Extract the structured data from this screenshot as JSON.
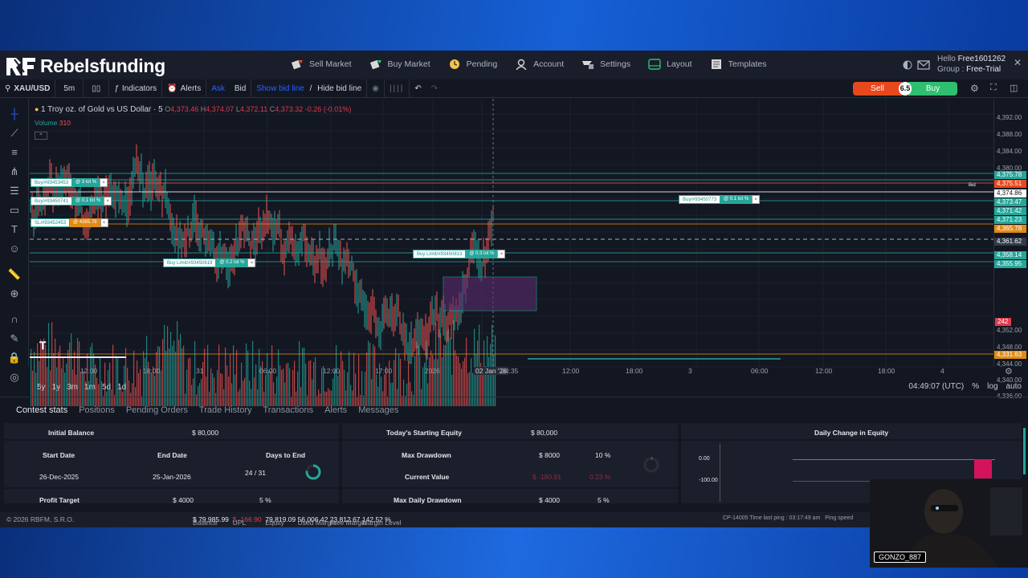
{
  "brand": {
    "name": "Rebelsfunding"
  },
  "nav": [
    {
      "label": "Sell Market",
      "icon": "sell-market-icon"
    },
    {
      "label": "Buy Market",
      "icon": "buy-market-icon"
    },
    {
      "label": "Pending",
      "icon": "pending-icon"
    },
    {
      "label": "Account",
      "icon": "account-icon"
    },
    {
      "label": "Settings",
      "icon": "settings-icon"
    },
    {
      "label": "Layout",
      "icon": "layout-icon"
    },
    {
      "label": "Templates",
      "icon": "templates-icon"
    }
  ],
  "user": {
    "hello_label": "Hello",
    "username": "Free1601262",
    "group_label": "Group",
    "group": "Free-Trial"
  },
  "toolbar": {
    "symbol": "XAU/USD",
    "interval": "5m",
    "indicators": "Indicators",
    "alerts": "Alerts",
    "ask": "Ask",
    "bid": "Bid",
    "show_bid_line": "Show bid line",
    "sep": " / ",
    "hide_bid_line": "Hide bid line"
  },
  "trade": {
    "sell": "Sell",
    "spread": "6.5",
    "buy": "Buy"
  },
  "legend": {
    "title": "1 Troy oz. of Gold vs US Dollar · 5",
    "o_label": "O",
    "o": "4,373.46",
    "h_label": "H",
    "h": "4,374.07",
    "l_label": "L",
    "l": "4,372.11",
    "c_label": "C",
    "c": "4,373.32",
    "change": "-0.26 (-0.01%)",
    "volume_label": "Volume",
    "volume": "310"
  },
  "price_axis": {
    "labels": [
      "4,392.00",
      "4,388.00",
      "4,384.00",
      "4,380.00",
      "4,352.00",
      "4,348.00",
      "4,344.00",
      "4,340.00",
      "4,336.00"
    ],
    "tags": [
      {
        "text": "4,375.78",
        "color": "#26a69a"
      },
      {
        "text": "4,375.51",
        "color": "#e8481e"
      },
      {
        "text": "4,374.86",
        "color": "#ffffff"
      },
      {
        "text": "4,373.47",
        "color": "#26a69a"
      },
      {
        "text": "4,371.42",
        "color": "#26a69a"
      },
      {
        "text": "4,371.23",
        "color": "#26a69a"
      },
      {
        "text": "4,365.78",
        "color": "#e08b16"
      },
      {
        "text": "4,361.62",
        "color": "#333a48"
      },
      {
        "text": "4,358.14",
        "color": "#26a69a"
      },
      {
        "text": "4,355.95",
        "color": "#26a69a"
      },
      {
        "text": "242",
        "color": "#e03a4e"
      },
      {
        "text": "4,331.63",
        "color": "#e08b16"
      }
    ],
    "bid_tag": "Bid"
  },
  "time_axis": [
    "12:00",
    "18:00",
    "31",
    "06:00",
    "12:00",
    "17:00",
    "2026",
    "02 Jan '26",
    "04:35",
    "12:00",
    "18:00",
    "3",
    "06:00",
    "12:00",
    "18:00",
    "4"
  ],
  "orders": [
    {
      "label": "Buy/#93453453",
      "lot": "@ 3 lot %",
      "kind": "buy"
    },
    {
      "label": "Buy/#93450741",
      "lot": "@ 0.1 lot %",
      "kind": "buy"
    },
    {
      "label": "SL/#93452453",
      "lot": "@ 4365.78",
      "kind": "sl"
    },
    {
      "label": "Buy Limit/#93450819",
      "lot": "@ 0.2 lot %",
      "kind": "buy"
    },
    {
      "label": "Buy Limit/#93450813",
      "lot": "@ 0.3 lot %",
      "kind": "buy"
    },
    {
      "label": "Buy/#93450773",
      "lot": "@ 0.1 lot %",
      "kind": "buy"
    }
  ],
  "ranges": [
    "5y",
    "1y",
    "3m",
    "1m",
    "5d",
    "1d"
  ],
  "clock": {
    "time": "04:49:07 (UTC)",
    "pct": "%",
    "log": "log",
    "auto": "auto"
  },
  "tabs": [
    "Contest stats",
    "Positions",
    "Pending Orders",
    "Trade History",
    "Transactions",
    "Alerts",
    "Messages"
  ],
  "stats": {
    "initial_balance_label": "Initial Balance",
    "initial_balance": "$ 80,000",
    "start_date_label": "Start Date",
    "end_date_label": "End Date",
    "days_to_end_label": "Days to End",
    "start_date": "26-Dec-2025",
    "end_date": "25-Jan-2026",
    "days_to_end": "24 / 31",
    "profit_target_label": "Profit Target",
    "profit_target": "$ 4000",
    "profit_target_pct": "5 %",
    "starting_equity_label": "Today's Starting Equity",
    "starting_equity": "$ 80,000",
    "max_drawdown_label": "Max Drawdown",
    "max_drawdown": "$ 8000",
    "max_drawdown_pct": "10 %",
    "current_value_label": "Current Value",
    "current_value": "$ -180.91",
    "current_value_pct": "0.23 %",
    "max_daily_drawdown_label": "Max Daily Drawdown",
    "max_daily_drawdown": "$ 4000",
    "max_daily_drawdown_pct": "5 %",
    "daily_change_label": "Daily Change in Equity",
    "chart_ticks": [
      "0.00",
      "-100.00"
    ]
  },
  "status": {
    "copyright": "© 2026 RBFM, S.R.O.",
    "balance_label": "Balance",
    "balance": "$ 79,985.99",
    "upl_label": "UPL",
    "upl": "$ -166.90",
    "equity_label": "Equity",
    "equity": "79,819.09",
    "used_margin_label": "Used Margin",
    "used_margin": "56,006.42",
    "free_margin_label": "Free Margin",
    "free_margin": "23,812.67",
    "margin_level_label": "Margin Level",
    "margin_level": "142.52 %",
    "ping": "CP-14005 Time last ping : 03:17:49 am   Ping speed"
  },
  "webcam": {
    "name": "GONZO_887"
  },
  "colors": {
    "up": "#26a69a",
    "down": "#ef5350",
    "accent": "#2962ff",
    "sell": "#e8481e",
    "buy": "#2fbf71"
  }
}
